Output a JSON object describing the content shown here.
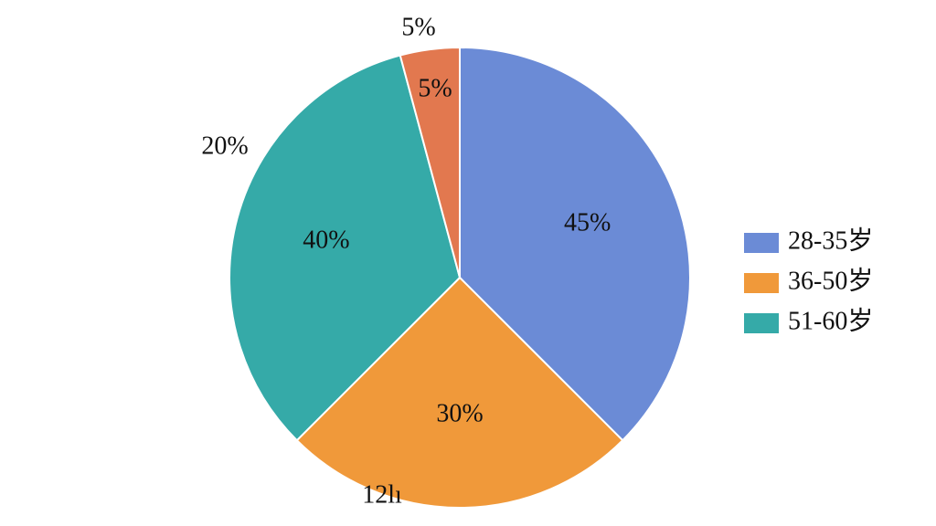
{
  "chart_data": {
    "type": "pie",
    "categories": [
      "28-35岁",
      "36-50岁",
      "51-60岁",
      null
    ],
    "values": [
      45,
      30,
      40,
      5
    ],
    "value_labels": [
      "45%",
      "30%",
      "40%",
      "5%"
    ],
    "colors": [
      "#6b8bd6",
      "#f0993a",
      "#35aaa8",
      "#e2784f"
    ],
    "annotations": [
      "5%",
      "20%",
      "12lı"
    ],
    "legend": "right"
  }
}
